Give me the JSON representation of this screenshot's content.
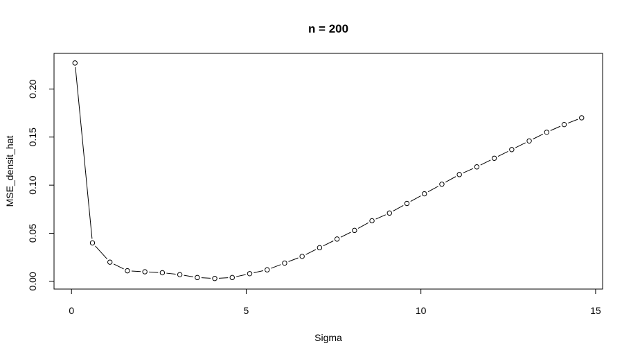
{
  "chart_data": {
    "type": "line",
    "title": "n =  200",
    "xlabel": "Sigma",
    "ylabel": "MSE_densit_hat",
    "xlim": [
      -0.5,
      15.2
    ],
    "ylim": [
      -0.008,
      0.237
    ],
    "x_ticks": [
      0,
      5,
      10,
      15
    ],
    "x_tick_labels": [
      "0",
      "5",
      "10",
      "15"
    ],
    "y_ticks": [
      0.0,
      0.05,
      0.1,
      0.15,
      0.2
    ],
    "y_tick_labels": [
      "0.00",
      "0.05",
      "0.10",
      "0.15",
      "0.20"
    ],
    "line_style": "dashed-segments",
    "marker": "open-circle",
    "grid": false,
    "x": [
      0.1,
      0.6,
      1.1,
      1.6,
      2.1,
      2.6,
      3.1,
      3.6,
      4.1,
      4.6,
      5.1,
      5.6,
      6.1,
      6.6,
      7.1,
      7.6,
      8.1,
      8.6,
      9.1,
      9.6,
      10.1,
      10.6,
      11.1,
      11.6,
      12.1,
      12.6,
      13.1,
      13.6,
      14.1,
      14.6
    ],
    "y": [
      0.227,
      0.04,
      0.02,
      0.011,
      0.01,
      0.009,
      0.007,
      0.004,
      0.003,
      0.004,
      0.008,
      0.012,
      0.019,
      0.026,
      0.035,
      0.044,
      0.053,
      0.063,
      0.071,
      0.081,
      0.091,
      0.101,
      0.111,
      0.119,
      0.128,
      0.137,
      0.146,
      0.155,
      0.163,
      0.17
    ]
  }
}
